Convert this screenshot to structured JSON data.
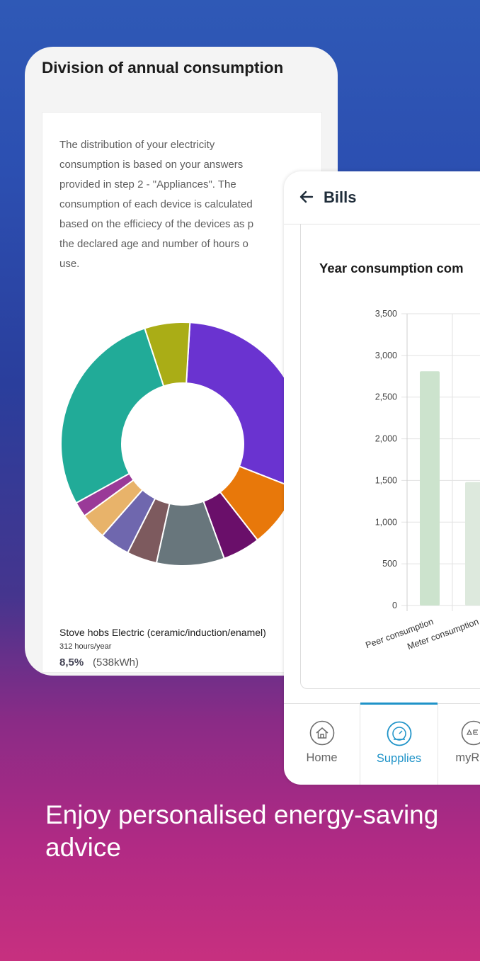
{
  "left_card": {
    "title": "Division of annual consumption",
    "description_lines": [
      "The distribution of your electricity",
      "consumption is based on your answers",
      "provided in step 2 - \"Appliances\". The",
      "consumption of each device is calculated",
      "based on the efficiecy of the devices as p",
      "the declared age and number of hours o",
      "use."
    ],
    "legend": {
      "name": "Stove hobs Electric (ceramic/induction/enamel)",
      "hours": "312 hours/year",
      "percent": "8,5%",
      "kwh": "(538kWh)"
    },
    "donut_segments": [
      {
        "color": "#6a33d0",
        "share": 30
      },
      {
        "color": "#e8780a",
        "share": 8.5
      },
      {
        "color": "#6a0f6a",
        "share": 5
      },
      {
        "color": "#68767c",
        "share": 9
      },
      {
        "color": "#7d5a5e",
        "share": 4
      },
      {
        "color": "#6f67ae",
        "share": 4
      },
      {
        "color": "#e8b36a",
        "share": 3.5
      },
      {
        "color": "#9a3a98",
        "share": 2
      },
      {
        "color": "#21ab98",
        "share": 28
      },
      {
        "color": "#aaad16",
        "share": 6
      }
    ]
  },
  "bills": {
    "title": "Bills",
    "chart_title": "Year consumption com",
    "tabs": [
      {
        "label": "Home",
        "icon": "home-icon",
        "active": false
      },
      {
        "label": "Supplies",
        "icon": "gauge-icon",
        "active": true
      },
      {
        "label": "myRev",
        "icon": "delta-icon",
        "active": false
      }
    ]
  },
  "chart_data": {
    "type": "bar",
    "categories": [
      "Peer consumption",
      "Meter consumption"
    ],
    "values": [
      2810,
      1480
    ],
    "ylim": [
      0,
      3500
    ],
    "yticks": [
      "0",
      "500",
      "1,000",
      "1,500",
      "2,000",
      "2,500",
      "3,000",
      "3,500"
    ],
    "colors": [
      "#cce3cd",
      "#dde9dd"
    ],
    "grid": true
  },
  "tagline": "Enjoy personalised energy-saving advice"
}
